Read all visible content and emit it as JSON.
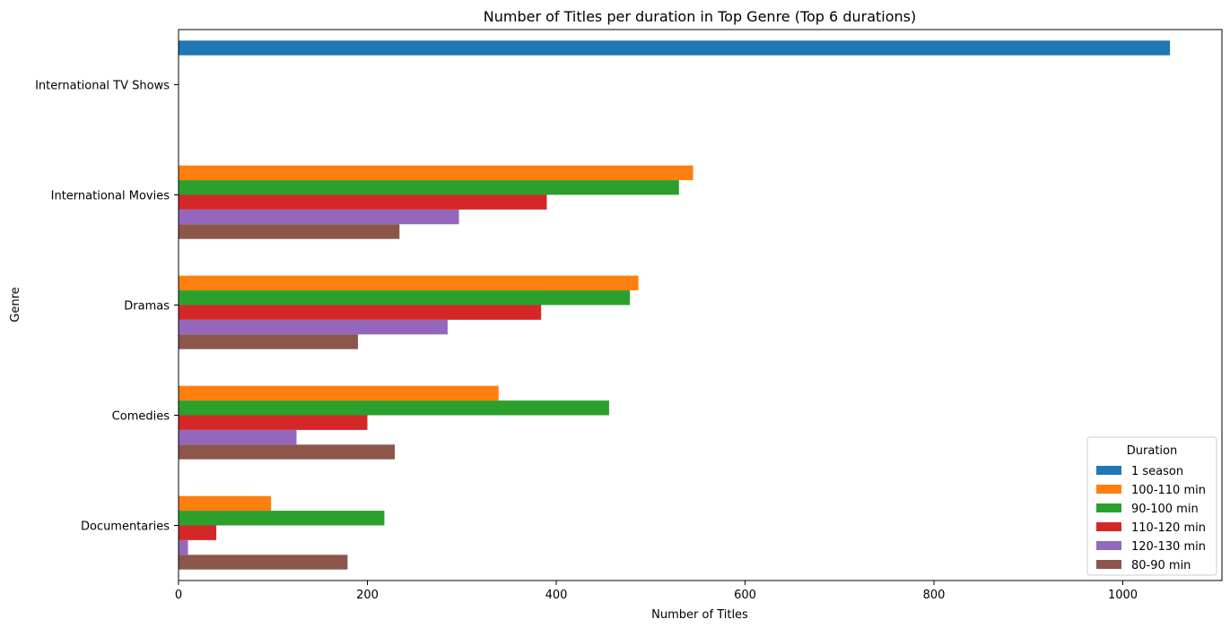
{
  "chart_data": {
    "type": "bar",
    "orientation": "horizontal",
    "title": "Number of Titles per duration in Top Genre (Top 6 durations)",
    "xlabel": "Number of Titles",
    "ylabel": "Genre",
    "xlim": [
      0,
      1105
    ],
    "xticks": [
      0,
      200,
      400,
      600,
      800,
      1000
    ],
    "grid": false,
    "categories": [
      "International TV Shows",
      "International Movies",
      "Dramas",
      "Comedies",
      "Documentaries"
    ],
    "legend": {
      "title": "Duration",
      "placement": "lower-right"
    },
    "series": [
      {
        "name": "1 season",
        "color": "#1f77b4",
        "values": [
          1050,
          0,
          0,
          0,
          0
        ]
      },
      {
        "name": "100-110 min",
        "color": "#ff7f0e",
        "values": [
          0,
          545,
          487,
          339,
          98
        ]
      },
      {
        "name": "90-100 min",
        "color": "#2ca02c",
        "values": [
          0,
          530,
          478,
          456,
          218
        ]
      },
      {
        "name": "110-120 min",
        "color": "#d62728",
        "values": [
          0,
          390,
          384,
          200,
          40
        ]
      },
      {
        "name": "120-130 min",
        "color": "#9467bd",
        "values": [
          0,
          297,
          285,
          125,
          10
        ]
      },
      {
        "name": "80-90 min",
        "color": "#8c564b",
        "values": [
          0,
          234,
          190,
          229,
          179
        ]
      }
    ]
  }
}
